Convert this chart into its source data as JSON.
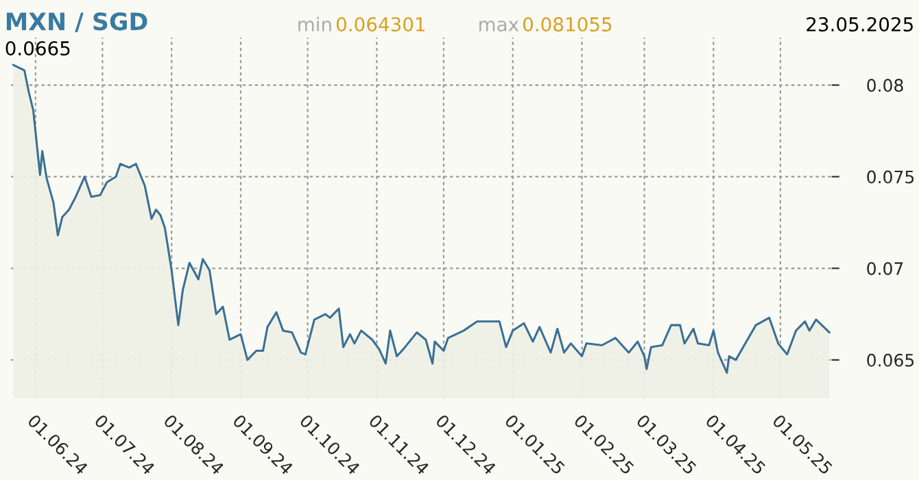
{
  "chart_data": {
    "type": "area",
    "title": "MXN / SGD",
    "annotations": [
      "min",
      "0.064301",
      "max",
      "0.081055",
      "23.05.2025",
      "0.0665"
    ],
    "x": [
      "2024-05-22",
      "2024-05-27",
      "2024-05-29",
      "2024-05-31",
      "2024-06-03",
      "2024-06-04",
      "2024-06-06",
      "2024-06-09",
      "2024-06-11",
      "2024-06-13",
      "2024-06-16",
      "2024-06-19",
      "2024-06-23",
      "2024-06-26",
      "2024-06-30",
      "2024-07-03",
      "2024-07-07",
      "2024-07-09",
      "2024-07-13",
      "2024-07-16",
      "2024-07-20",
      "2024-07-23",
      "2024-07-25",
      "2024-07-27",
      "2024-07-29",
      "2024-08-01",
      "2024-08-04",
      "2024-08-06",
      "2024-08-09",
      "2024-08-13",
      "2024-08-15",
      "2024-08-18",
      "2024-08-21",
      "2024-08-24",
      "2024-08-27",
      "2024-09-01",
      "2024-09-04",
      "2024-09-08",
      "2024-09-11",
      "2024-09-13",
      "2024-09-17",
      "2024-09-20",
      "2024-09-24",
      "2024-09-28",
      "2024-09-30",
      "2024-10-04",
      "2024-10-09",
      "2024-10-11",
      "2024-10-15",
      "2024-10-17",
      "2024-10-20",
      "2024-10-22",
      "2024-10-25",
      "2024-10-30",
      "2024-11-02",
      "2024-11-05",
      "2024-11-07",
      "2024-11-10",
      "2024-11-13",
      "2024-11-19",
      "2024-11-23",
      "2024-11-26",
      "2024-11-27",
      "2024-12-01",
      "2024-12-03",
      "2024-12-10",
      "2024-12-16",
      "2024-12-26",
      "2024-12-29",
      "2025-01-01",
      "2025-01-06",
      "2025-01-10",
      "2025-01-13",
      "2025-01-18",
      "2025-01-21",
      "2025-01-24",
      "2025-01-27",
      "2025-02-01",
      "2025-02-03",
      "2025-02-10",
      "2025-02-16",
      "2025-02-22",
      "2025-02-26",
      "2025-03-01",
      "2025-03-02",
      "2025-03-04",
      "2025-03-09",
      "2025-03-13",
      "2025-03-17",
      "2025-03-19",
      "2025-03-23",
      "2025-03-25",
      "2025-03-30",
      "2025-04-01",
      "2025-04-03",
      "2025-04-07",
      "2025-04-08",
      "2025-04-11",
      "2025-04-20",
      "2025-04-26",
      "2025-04-30",
      "2025-05-04",
      "2025-05-08",
      "2025-05-12",
      "2025-05-14",
      "2025-05-17",
      "2025-05-23"
    ],
    "series": [
      {
        "color": "#3a7095",
        "values": [
          0.0811,
          0.0808,
          0.0796,
          0.0786,
          0.0751,
          0.0764,
          0.0749,
          0.0736,
          0.0718,
          0.0728,
          0.0732,
          0.0739,
          0.075,
          0.0739,
          0.074,
          0.0747,
          0.075,
          0.0757,
          0.0755,
          0.0757,
          0.0745,
          0.0727,
          0.0732,
          0.0729,
          0.0722,
          0.0699,
          0.0669,
          0.0688,
          0.0703,
          0.0694,
          0.0705,
          0.0699,
          0.0675,
          0.0679,
          0.0661,
          0.0664,
          0.065,
          0.0655,
          0.0655,
          0.0668,
          0.0676,
          0.0666,
          0.0665,
          0.0654,
          0.0653,
          0.0672,
          0.0675,
          0.0673,
          0.0678,
          0.0657,
          0.0664,
          0.0659,
          0.0666,
          0.0661,
          0.0656,
          0.0648,
          0.0666,
          0.0652,
          0.0656,
          0.0665,
          0.0661,
          0.0648,
          0.066,
          0.0655,
          0.0662,
          0.0666,
          0.0671,
          0.0671,
          0.0657,
          0.0666,
          0.067,
          0.066,
          0.0668,
          0.0654,
          0.0667,
          0.0654,
          0.0659,
          0.0652,
          0.0659,
          0.0658,
          0.0662,
          0.0654,
          0.066,
          0.0652,
          0.0645,
          0.0657,
          0.0658,
          0.0669,
          0.0669,
          0.0659,
          0.0667,
          0.0659,
          0.0658,
          0.0666,
          0.0654,
          0.0643,
          0.0652,
          0.065,
          0.0669,
          0.0673,
          0.0659,
          0.0653,
          0.0666,
          0.0671,
          0.0666,
          0.0672,
          0.0665
        ]
      }
    ],
    "xlim": [
      "2024-05-21",
      "2025-05-24"
    ],
    "xticks": [
      {
        "value": "2024-06-01",
        "label": "01.06.24"
      },
      {
        "value": "2024-07-01",
        "label": "01.07.24"
      },
      {
        "value": "2024-08-01",
        "label": "01.08.24"
      },
      {
        "value": "2024-09-01",
        "label": "01.09.24"
      },
      {
        "value": "2024-10-01",
        "label": "01.10.24"
      },
      {
        "value": "2024-11-01",
        "label": "01.11.24"
      },
      {
        "value": "2024-12-01",
        "label": "01.12.24"
      },
      {
        "value": "2025-01-01",
        "label": "01.01.25"
      },
      {
        "value": "2025-02-01",
        "label": "01.02.25"
      },
      {
        "value": "2025-03-01",
        "label": "01.03.25"
      },
      {
        "value": "2025-04-01",
        "label": "01.04.25"
      },
      {
        "value": "2025-05-01",
        "label": "01.05.25"
      }
    ],
    "ylim": [
      0.0629,
      0.0826
    ],
    "yticks": [
      0.065,
      0.07,
      0.075,
      0.08
    ],
    "grid": true,
    "line_style": "solid"
  }
}
